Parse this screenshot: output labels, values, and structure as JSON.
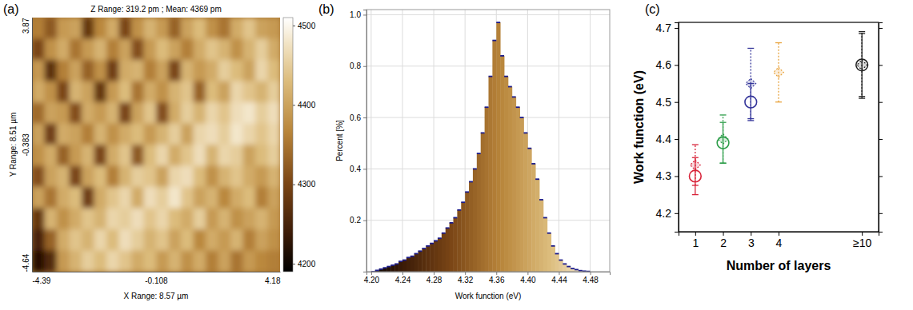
{
  "chart_data": [
    {
      "type": "heatmap",
      "panel_label": "(a)",
      "title": "Z Range: 319.2 pm ; Mean: 4369 pm",
      "x_label": "X Range: 8.57 µm",
      "y_label": "Y Range: 8.51 µm",
      "xlim": [
        -4.39,
        4.18
      ],
      "xticks": [
        -4.39,
        -0.108,
        4.18
      ],
      "ylim": [
        -4.64,
        3.87
      ],
      "yticks": [
        3.87,
        -0.383,
        -4.64
      ],
      "z": [
        [
          4360,
          4320,
          4390,
          4400,
          4280,
          4370,
          4410,
          4300,
          4380,
          4420,
          4390,
          4330,
          4400,
          4430,
          4380,
          4350,
          4410,
          4440,
          4400,
          4390
        ],
        [
          4300,
          4380,
          4410,
          4350,
          4390,
          4420,
          4360,
          4400,
          4310,
          4390,
          4430,
          4400,
          4360,
          4410,
          4440,
          4420,
          4380,
          4420,
          4450,
          4410
        ],
        [
          4390,
          4270,
          4360,
          4400,
          4330,
          4380,
          4290,
          4410,
          4420,
          4360,
          4400,
          4300,
          4420,
          4390,
          4410,
          4450,
          4430,
          4400,
          4460,
          4430
        ],
        [
          4410,
          4380,
          4300,
          4420,
          4400,
          4280,
          4390,
          4430,
          4350,
          4410,
          4380,
          4420,
          4440,
          4330,
          4430,
          4400,
          4460,
          4440,
          4420,
          4450
        ],
        [
          4340,
          4400,
          4390,
          4310,
          4410,
          4390,
          4420,
          4300,
          4400,
          4440,
          4310,
          4410,
          4450,
          4420,
          4460,
          4440,
          4470,
          4480,
          4450,
          4470
        ],
        [
          4400,
          4290,
          4410,
          4400,
          4360,
          4420,
          4380,
          4410,
          4430,
          4390,
          4420,
          4450,
          4400,
          4460,
          4470,
          4450,
          4480,
          4460,
          4440,
          4460
        ],
        [
          4380,
          4410,
          4330,
          4390,
          4420,
          4300,
          4410,
          4440,
          4320,
          4430,
          4460,
          4410,
          4440,
          4470,
          4420,
          4460,
          4450,
          4400,
          4430,
          4450
        ],
        [
          4310,
          4400,
          4420,
          4300,
          4400,
          4430,
          4360,
          4420,
          4450,
          4440,
          4400,
          4460,
          4470,
          4430,
          4380,
          4420,
          4440,
          4410,
          4390,
          4420
        ],
        [
          4400,
          4350,
          4410,
          4430,
          4290,
          4410,
          4440,
          4460,
          4410,
          4470,
          4450,
          4480,
          4440,
          4400,
          4420,
          4370,
          4410,
          4430,
          4360,
          4400
        ],
        [
          4280,
          4420,
          4380,
          4410,
          4440,
          4420,
          4460,
          4450,
          4470,
          4440,
          4460,
          4430,
          4410,
          4450,
          4390,
          4420,
          4380,
          4400,
          4420,
          4390
        ],
        [
          4250,
          4330,
          4410,
          4440,
          4420,
          4460,
          4430,
          4470,
          4450,
          4420,
          4440,
          4400,
          4430,
          4370,
          4410,
          4390,
          4420,
          4360,
          4400,
          4380
        ],
        [
          4220,
          4260,
          4390,
          4420,
          4450,
          4430,
          4460,
          4440,
          4410,
          4430,
          4390,
          4420,
          4380,
          4410,
          4360,
          4400,
          4350,
          4390,
          4370,
          4360
        ]
      ],
      "zlim": [
        4190,
        4510
      ],
      "zticks": [
        4500,
        4400,
        4300,
        4200
      ]
    },
    {
      "type": "histogram",
      "panel_label": "(b)",
      "x_label": "Work function (eV)",
      "y_label": "Percent [%]",
      "bins": [
        4.2,
        4.205,
        4.21,
        4.215,
        4.22,
        4.225,
        4.23,
        4.235,
        4.24,
        4.245,
        4.25,
        4.255,
        4.26,
        4.265,
        4.27,
        4.275,
        4.28,
        4.285,
        4.29,
        4.295,
        4.3,
        4.305,
        4.31,
        4.315,
        4.32,
        4.325,
        4.33,
        4.335,
        4.34,
        4.345,
        4.35,
        4.355,
        4.36,
        4.365,
        4.37,
        4.375,
        4.38,
        4.385,
        4.39,
        4.395,
        4.4,
        4.405,
        4.41,
        4.415,
        4.42,
        4.425,
        4.43,
        4.435,
        4.44,
        4.445,
        4.45,
        4.455,
        4.46,
        4.465,
        4.47,
        4.475,
        4.48
      ],
      "values": [
        0,
        0.005,
        0.01,
        0.015,
        0.02,
        0.025,
        0.03,
        0.04,
        0.045,
        0.055,
        0.06,
        0.07,
        0.08,
        0.09,
        0.1,
        0.11,
        0.12,
        0.13,
        0.15,
        0.17,
        0.19,
        0.21,
        0.24,
        0.27,
        0.31,
        0.35,
        0.4,
        0.46,
        0.54,
        0.64,
        0.76,
        0.9,
        0.97,
        0.84,
        0.76,
        0.72,
        0.68,
        0.64,
        0.6,
        0.54,
        0.48,
        0.42,
        0.36,
        0.28,
        0.21,
        0.15,
        0.1,
        0.07,
        0.045,
        0.03,
        0.02,
        0.012,
        0.008,
        0.004,
        0.002,
        0.001
      ],
      "xlim": [
        4.194,
        4.505
      ],
      "xticks": [
        {
          "value": 4.2,
          "label": "4.20"
        },
        4.24,
        4.28,
        4.32,
        4.36,
        {
          "value": 4.4,
          "label": "4.40"
        },
        4.44,
        4.48
      ],
      "ylim": [
        0,
        1.02
      ],
      "yticks": [
        0.2,
        0.4,
        0.6,
        0.8,
        {
          "value": 1,
          "label": "1.0"
        }
      ],
      "grid": true
    },
    {
      "type": "scatter",
      "panel_label": "(c)",
      "x_label": "Number of layers",
      "y_label": "Work function (eV)",
      "categories": [
        "1",
        "2",
        "3",
        "4",
        null,
        null,
        "≥10"
      ],
      "ylim": [
        4.15,
        4.715
      ],
      "yticks": [
        4.2,
        4.3,
        4.4,
        4.5,
        4.6,
        4.7
      ],
      "series": [
        {
          "marker": "circle",
          "line_style": "solid",
          "values": [
            4.3,
            4.39,
            4.5,
            null,
            null,
            null,
            4.6
          ],
          "errors": [
            0.05,
            0.055,
            0.05,
            null,
            null,
            null,
            0.085
          ],
          "colors": [
            "#d8243a",
            "#2e9e4a",
            "#34359a",
            null,
            null,
            null,
            "#222222"
          ]
        },
        {
          "marker": "diamond",
          "line_style": "dotted",
          "values": [
            4.33,
            4.4,
            4.55,
            4.58,
            null,
            null,
            4.6
          ],
          "errors": [
            0.055,
            0.065,
            0.095,
            0.08,
            null,
            null,
            0.09
          ],
          "colors": [
            "#d8243a",
            "#2e9e4a",
            "#34359a",
            "#e8a33c",
            null,
            null,
            "#222222"
          ]
        }
      ]
    }
  ]
}
